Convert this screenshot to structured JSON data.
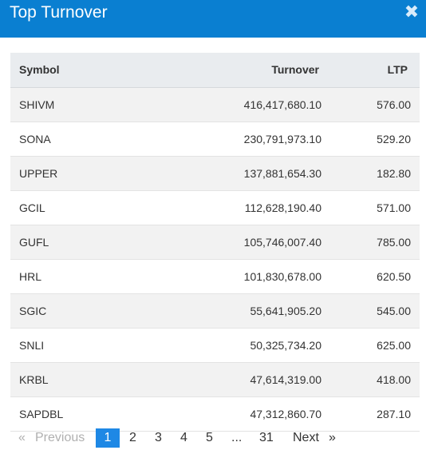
{
  "header": {
    "title": "Top Turnover",
    "close_icon": "close-icon"
  },
  "table": {
    "columns": [
      "Symbol",
      "Turnover",
      "LTP"
    ],
    "rows": [
      [
        "SHIVM",
        "416,417,680.10",
        "576.00"
      ],
      [
        "SONA",
        "230,791,973.10",
        "529.20"
      ],
      [
        "UPPER",
        "137,881,654.30",
        "182.80"
      ],
      [
        "GCIL",
        "112,628,190.40",
        "571.00"
      ],
      [
        "GUFL",
        "105,746,007.40",
        "785.00"
      ],
      [
        "HRL",
        "101,830,678.00",
        "620.50"
      ],
      [
        "SGIC",
        "55,641,905.20",
        "545.00"
      ],
      [
        "SNLI",
        "50,325,734.20",
        "625.00"
      ],
      [
        "KRBL",
        "47,614,319.00",
        "418.00"
      ],
      [
        "SAPDBL",
        "47,312,860.70",
        "287.10"
      ]
    ]
  },
  "pagination": {
    "prev_arrow": "«",
    "prev_label": "Previous",
    "pages": [
      "1",
      "2",
      "3",
      "4",
      "5",
      "...",
      "31"
    ],
    "active_page": "1",
    "next_label": "Next",
    "next_arrow": "»"
  },
  "colors": {
    "header_bg": "#0a7fd1",
    "active_page_bg": "#1e88e5"
  }
}
